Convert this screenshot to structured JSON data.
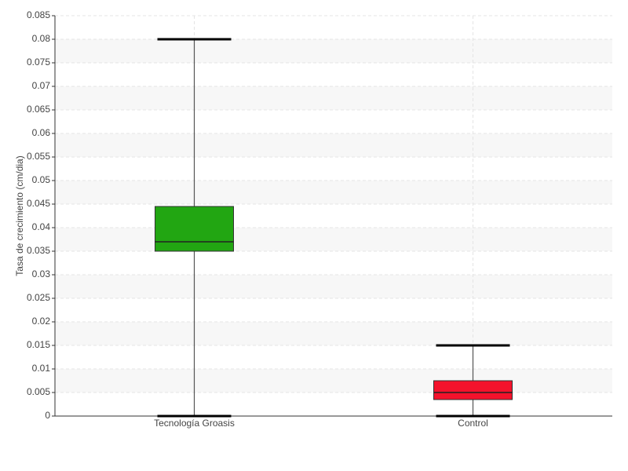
{
  "chart_data": {
    "type": "box",
    "y_label": "Tasa de crecimiento (cm/dia)",
    "categories": [
      "Tecnología Groasis",
      "Control"
    ],
    "boxes": [
      {
        "min": 0,
        "q1": 0.035,
        "median": 0.037,
        "q3": 0.0445,
        "max": 0.08,
        "color": "#22a612"
      },
      {
        "min": 0,
        "q1": 0.0035,
        "median": 0.005,
        "q3": 0.0075,
        "max": 0.015,
        "color": "#f4122c"
      }
    ],
    "ylim": [
      0,
      0.085
    ],
    "yticks": [
      0,
      0.005,
      0.01,
      0.015,
      0.02,
      0.025,
      0.03,
      0.035,
      0.04,
      0.045,
      0.05,
      0.055,
      0.06,
      0.065,
      0.07,
      0.075,
      0.08,
      0.085
    ],
    "grid": true
  }
}
